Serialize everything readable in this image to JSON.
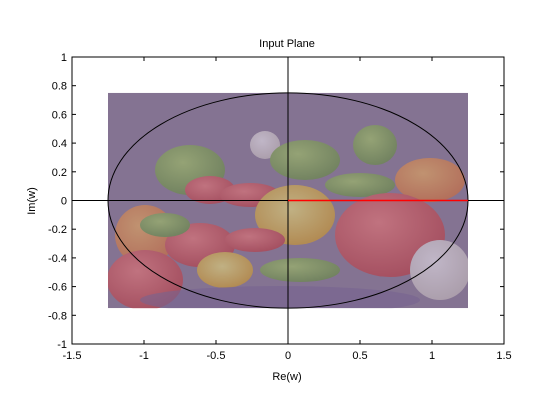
{
  "figure": {
    "background": "#ffffff",
    "image_tint": "#8c7a99",
    "image_tint_opacity": 0.55
  },
  "chart_data": {
    "type": "scatter",
    "title": "Input Plane",
    "xlabel": "Re(w)",
    "ylabel": "Im(w)",
    "xlim": [
      -1.5,
      1.5
    ],
    "ylim": [
      -1,
      1
    ],
    "xticks": [
      -1.5,
      -1,
      -0.5,
      0,
      0.5,
      1,
      1.5
    ],
    "xtick_labels": [
      "-1.5",
      "-1",
      "-0.5",
      "0",
      "0.5",
      "1",
      "1.5"
    ],
    "yticks": [
      -1,
      -0.8,
      -0.6,
      -0.4,
      -0.2,
      0,
      0.2,
      0.4,
      0.6,
      0.8,
      1
    ],
    "ytick_labels": [
      "-1",
      "-0.8",
      "-0.6",
      "-0.4",
      "-0.2",
      "0",
      "0.2",
      "0.4",
      "0.6",
      "0.8",
      "1"
    ],
    "grid": false,
    "legend": "none",
    "image_extent": {
      "x": [
        -1.25,
        1.25
      ],
      "y": [
        -0.75,
        0.75
      ]
    },
    "ellipse": {
      "center": [
        0,
        0
      ],
      "rx": 1.25,
      "ry": 0.75,
      "color": "#000000"
    },
    "axes_lines": {
      "color": "#000000",
      "x_span": [
        -1.5,
        1.5
      ],
      "y_span": [
        -1,
        1
      ]
    },
    "highlight_segment": {
      "from": [
        0,
        0
      ],
      "to": [
        1.25,
        0
      ],
      "color": "#ff0000"
    }
  }
}
